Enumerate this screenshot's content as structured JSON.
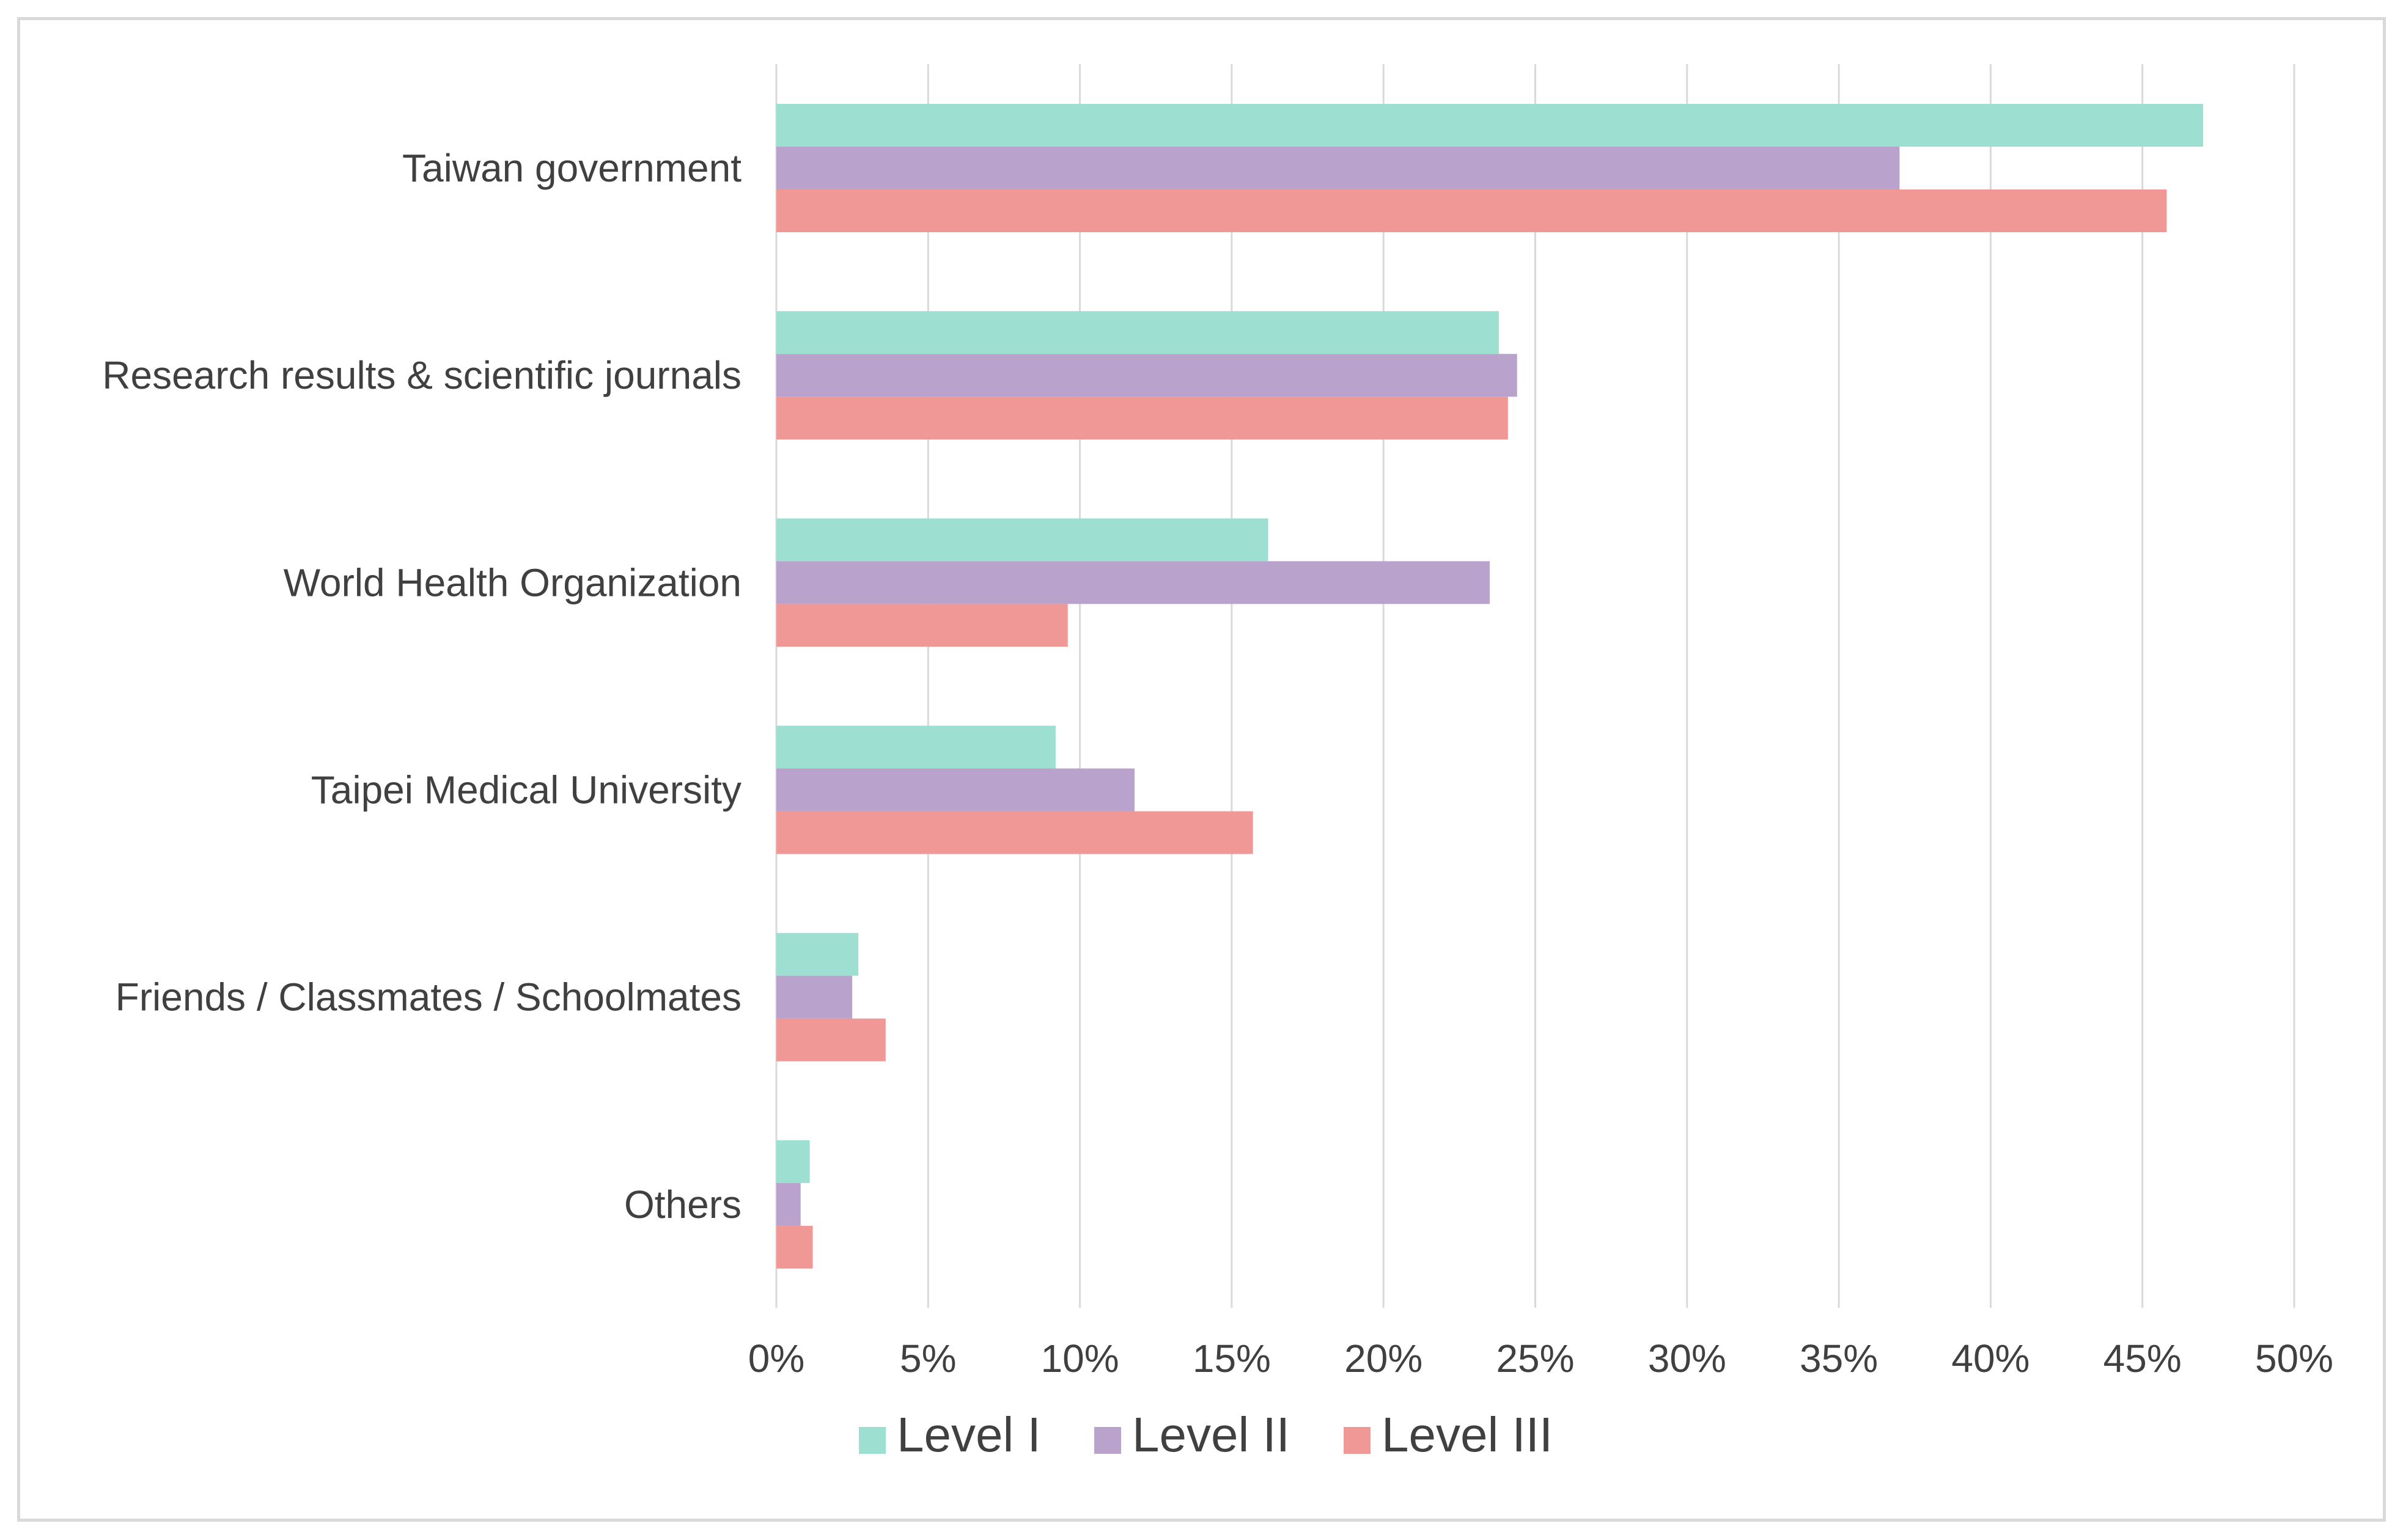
{
  "chart_data": {
    "type": "bar",
    "orientation": "horizontal",
    "title": "",
    "xlabel": "",
    "ylabel": "",
    "categories": [
      "Taiwan government",
      "Research results & scientific journals",
      "World Health Organization",
      "Taipei Medical University",
      "Friends / Classmates / Schoolmates",
      "Others"
    ],
    "series": [
      {
        "name": "Level I",
        "color": "#9ddfd0",
        "values": [
          47.0,
          23.8,
          16.2,
          9.2,
          2.7,
          1.1
        ]
      },
      {
        "name": "Level II",
        "color": "#b9a2cc",
        "values": [
          37.0,
          24.4,
          23.5,
          11.8,
          2.5,
          0.8
        ]
      },
      {
        "name": "Level III",
        "color": "#ef9896",
        "values": [
          45.8,
          24.1,
          9.6,
          15.7,
          3.6,
          1.2
        ]
      }
    ],
    "xlim": [
      0,
      50
    ],
    "xticks": [
      0,
      5,
      10,
      15,
      20,
      25,
      30,
      35,
      40,
      45,
      50
    ],
    "xtick_labels": [
      "0%",
      "5%",
      "10%",
      "15%",
      "20%",
      "25%",
      "30%",
      "35%",
      "40%",
      "45%",
      "50%"
    ],
    "grid": true,
    "legend_position": "bottom"
  }
}
